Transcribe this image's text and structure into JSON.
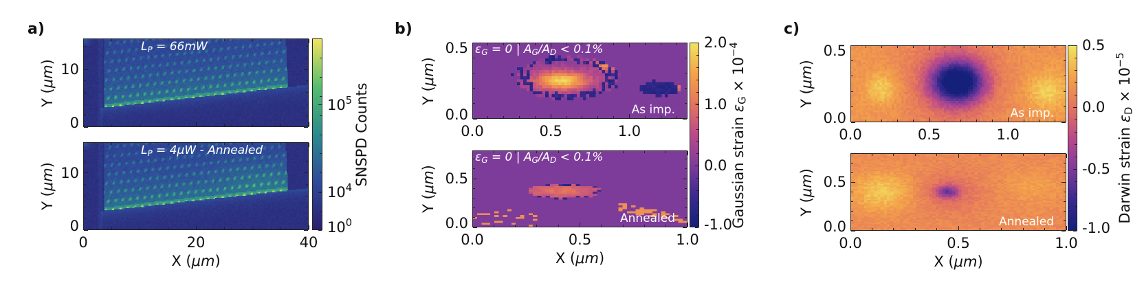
{
  "chart_data": [
    {
      "panel_label": "a)",
      "type": "heatmap",
      "colormap": "viridis",
      "subplots": [
        {
          "annotation": "L_{P} = 66mW",
          "xlim": [
            0,
            40
          ],
          "ylim": [
            15.4,
            0
          ],
          "xticks": [],
          "yticks": [
            {
              "value": 0,
              "label": "0"
            },
            {
              "value": 10,
              "label": "10"
            }
          ],
          "ylabel": "Y (μm)",
          "xlabel": ""
        },
        {
          "annotation": "L_{P} = 4μW - Annealed",
          "xlim": [
            0,
            40
          ],
          "ylim": [
            15.4,
            0
          ],
          "xticks": [
            {
              "value": 0,
              "label": "0"
            },
            {
              "value": 20,
              "label": "20"
            },
            {
              "value": 40,
              "label": "40"
            }
          ],
          "yticks": [
            {
              "value": 0,
              "label": "0"
            },
            {
              "value": 10,
              "label": "10"
            }
          ],
          "ylabel": "Y (μm)",
          "xlabel": "X (μm)"
        }
      ],
      "colorbar": {
        "label": "SNSPD Counts",
        "scale": "symlog",
        "range": [
          0,
          570000
        ],
        "ticks": [
          {
            "value": 1,
            "label": "10^{0}"
          },
          {
            "value": 10000,
            "label": "10^{4}"
          },
          {
            "value": 100000,
            "label": "10^{5}"
          }
        ]
      }
    },
    {
      "panel_label": "b)",
      "type": "heatmap",
      "colormap": "plasma",
      "subplots": [
        {
          "annotation": "ε_{G} = 0 | A_{G}/A_{D} < 0.1%",
          "corner_label": "As imp.",
          "xlim": [
            0,
            1.37
          ],
          "ylim": [
            0,
            0.5
          ],
          "xticks": [
            {
              "value": 0,
              "label": "0.0"
            },
            {
              "value": 0.5,
              "label": "0.5"
            },
            {
              "value": 1.0,
              "label": "1.0"
            }
          ],
          "yticks": [
            {
              "value": 0,
              "label": "0.0"
            },
            {
              "value": 0.5,
              "label": "0.5"
            }
          ],
          "ylabel": "Y (μm)",
          "xlabel": ""
        },
        {
          "annotation": "ε_{G} = 0 | A_{G}/A_{D} < 0.1%",
          "corner_label": "Annealed",
          "xlim": [
            0,
            1.0
          ],
          "ylim": [
            0,
            0.79
          ],
          "xticks": [
            {
              "value": 0,
              "label": "0.0"
            },
            {
              "value": 0.5,
              "label": "0.5"
            },
            {
              "value": 1.0,
              "label": "1.0"
            }
          ],
          "yticks": [
            {
              "value": 0,
              "label": "0.0"
            },
            {
              "value": 0.5,
              "label": "0.5"
            }
          ],
          "ylabel": "Y (μm)",
          "xlabel": "X (μm)"
        }
      ],
      "colorbar": {
        "label": "Gaussian strain ε_{G} × 10^{−4}",
        "scale": "linear",
        "range": [
          -1.0,
          2.0
        ],
        "ticks": [
          {
            "value": 2.0,
            "label": "2.0"
          },
          {
            "value": 1.0,
            "label": "1.0"
          },
          {
            "value": 0.0,
            "label": "0.0"
          },
          {
            "value": -1.0,
            "label": "-1.0"
          }
        ]
      }
    },
    {
      "panel_label": "c)",
      "type": "heatmap",
      "colormap": "plasma",
      "subplots": [
        {
          "annotation": "",
          "corner_label": "As imp.",
          "xlim": [
            0,
            1.37
          ],
          "ylim": [
            0,
            0.5
          ],
          "xticks": [
            {
              "value": 0,
              "label": "0.0"
            },
            {
              "value": 0.5,
              "label": "0.5"
            },
            {
              "value": 1.0,
              "label": "1.0"
            }
          ],
          "yticks": [
            {
              "value": 0,
              "label": "0.0"
            },
            {
              "value": 0.5,
              "label": "0.5"
            }
          ],
          "ylabel": "Y (μm)",
          "xlabel": ""
        },
        {
          "annotation": "",
          "corner_label": "Annealed",
          "xlim": [
            0,
            1.0
          ],
          "ylim": [
            0,
            0.8
          ],
          "xticks": [
            {
              "value": 0,
              "label": "0.0"
            },
            {
              "value": 0.5,
              "label": "0.5"
            },
            {
              "value": 1.0,
              "label": "1.0"
            }
          ],
          "yticks": [
            {
              "value": 0,
              "label": "0.0"
            },
            {
              "value": 0.5,
              "label": "0.5"
            }
          ],
          "ylabel": "Y (μm)",
          "xlabel": "X (μm)"
        }
      ],
      "colorbar": {
        "label": "Darwin strain ε_{D} × 10^{−5}",
        "scale": "linear",
        "range": [
          -1.0,
          0.5
        ],
        "ticks": [
          {
            "value": 0.5,
            "label": "0.5"
          },
          {
            "value": 0.0,
            "label": "0.0"
          },
          {
            "value": -0.5,
            "label": "-0.5"
          },
          {
            "value": -1.0,
            "label": "-1.0"
          }
        ]
      }
    }
  ],
  "colors": {
    "viridis": [
      "#2a1e6e",
      "#2f4a9a",
      "#2b8a8e",
      "#56bd6e",
      "#f2e45e"
    ],
    "plasma": [
      "#14207a",
      "#3b2a8f",
      "#7e3c9a",
      "#b94a8a",
      "#e4745e",
      "#f3a24a",
      "#f1e45f"
    ],
    "annotation_text": "#ffffff"
  }
}
